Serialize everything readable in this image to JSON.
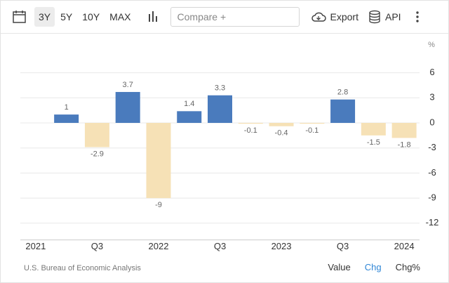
{
  "toolbar": {
    "ranges": [
      "3Y",
      "5Y",
      "10Y",
      "MAX"
    ],
    "active_range": "3Y",
    "compare": "Compare +",
    "export": "Export",
    "api": "API"
  },
  "chart_data": {
    "type": "bar",
    "y_label": "%",
    "categories": [
      "2021",
      null,
      "Q3",
      null,
      "2022",
      null,
      "Q3",
      null,
      "2023",
      null,
      "Q3",
      null,
      "2024"
    ],
    "values": [
      null,
      1,
      -2.9,
      3.7,
      -9,
      1.4,
      3.3,
      -0.1,
      -0.4,
      -0.1,
      2.8,
      -1.5,
      -1.8
    ],
    "color": "#4a7bbd",
    "negative_color": "#f6e1b6",
    "ylim": [
      -14,
      8
    ],
    "yticks": [
      6,
      3,
      0,
      -3,
      -6,
      -9,
      -12
    ],
    "grid": true,
    "y_axis_side": "right"
  },
  "footer": {
    "source": "U.S. Bureau of Economic Analysis",
    "modes": [
      "Value",
      "Chg",
      "Chg%"
    ],
    "active_mode": "Chg"
  }
}
